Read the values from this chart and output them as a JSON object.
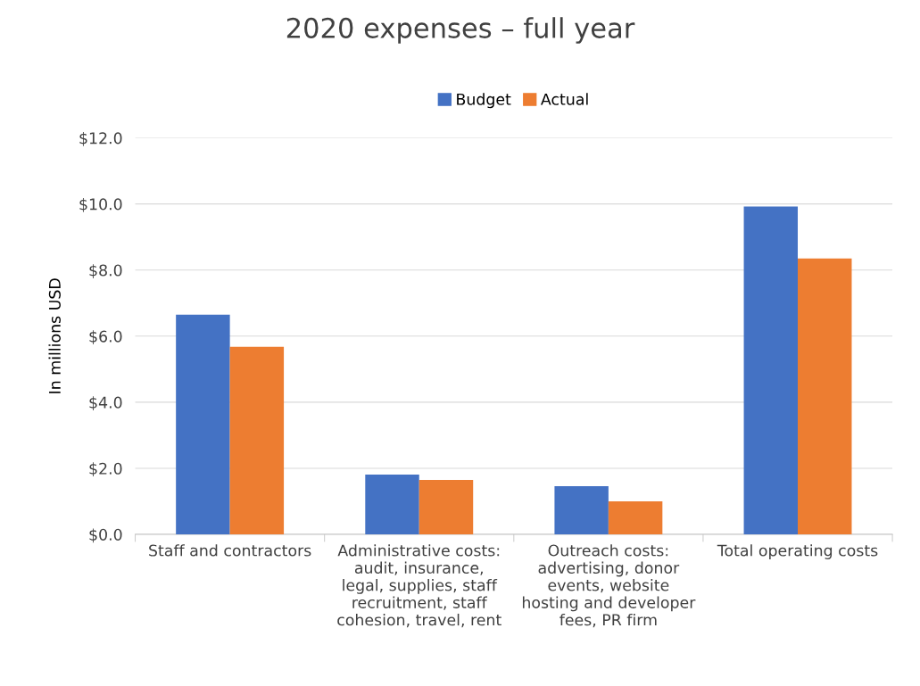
{
  "chart_data": {
    "type": "bar",
    "title": "2020 expenses – full year",
    "ylabel": "In millions USD",
    "categories": [
      "Staff and contractors",
      "Administrative costs:\naudit, insurance,\nlegal, supplies, staff\nrecruitment, staff\ncohesion, travel, rent",
      "Outreach costs:\nadvertising, donor\nevents, website\nhosting and developer\nfees, PR firm",
      "Total operating costs"
    ],
    "series": [
      {
        "name": "Budget",
        "color": "#4472c4",
        "values": [
          6.65,
          1.81,
          1.46,
          9.92
        ]
      },
      {
        "name": "Actual",
        "color": "#ed7d31",
        "values": [
          5.68,
          1.65,
          1.0,
          8.35
        ]
      }
    ],
    "ylim": [
      0,
      12
    ],
    "yticks": [
      {
        "value": 0,
        "label": "$0.0"
      },
      {
        "value": 2,
        "label": "$2.0"
      },
      {
        "value": 4,
        "label": "$4.0"
      },
      {
        "value": 6,
        "label": "$6.0"
      },
      {
        "value": 8,
        "label": "$8.0"
      },
      {
        "value": 10,
        "label": "$10.0"
      },
      {
        "value": 12,
        "label": "$12.0"
      }
    ],
    "grid": "y",
    "legend": "top"
  }
}
